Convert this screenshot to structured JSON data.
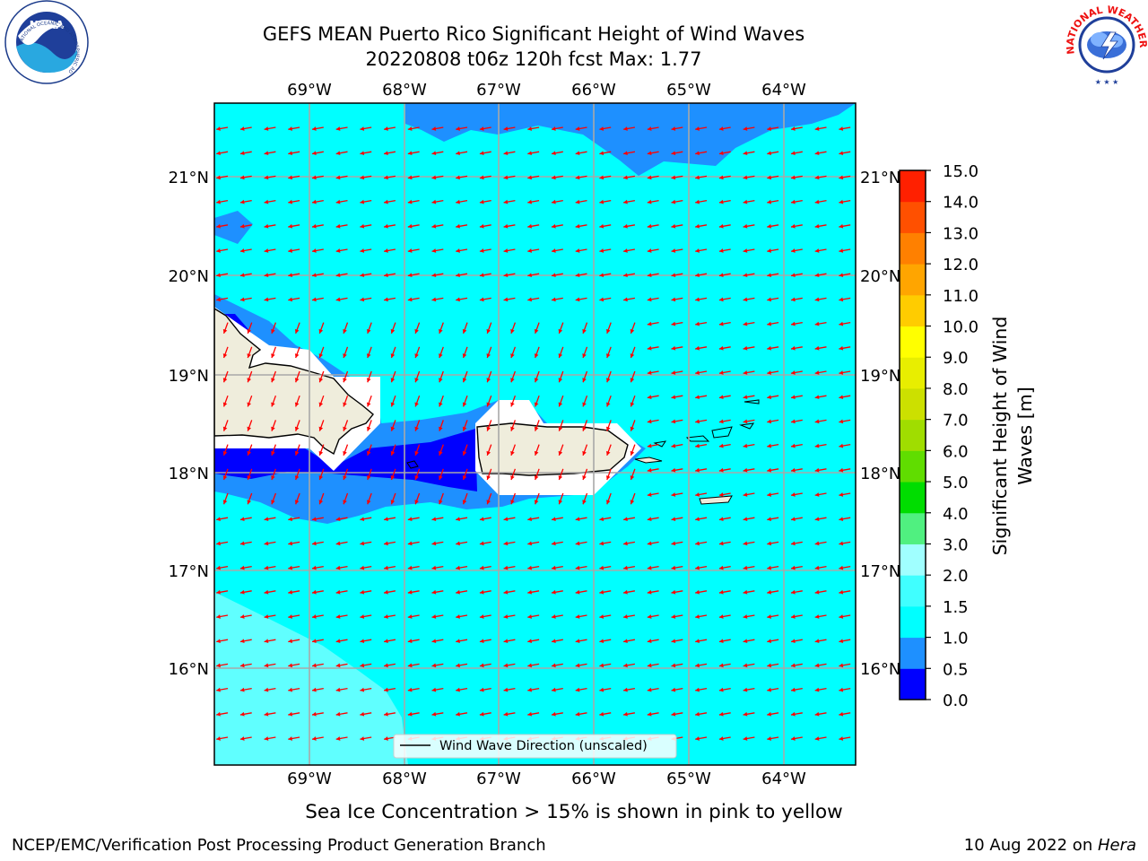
{
  "title_line1": "GEFS MEAN Puerto Rico Significant Height of Wind Waves",
  "title_line2": "20220808 t06z 120h fcst   Max: 1.77",
  "lon_ticks": [
    "69°W",
    "68°W",
    "67°W",
    "66°W",
    "65°W",
    "64°W"
  ],
  "lat_ticks": [
    "21°N",
    "20°N",
    "19°N",
    "18°N",
    "17°N",
    "16°N"
  ],
  "legend_label": "Wind Wave Direction (unscaled)",
  "colorbar": {
    "label_line1": "Significant Height of Wind",
    "label_line2": "Waves [m]",
    "ticks": [
      "0.0",
      "0.5",
      "1.0",
      "1.5",
      "2.0",
      "3.0",
      "4.0",
      "5.0",
      "6.0",
      "7.0",
      "8.0",
      "9.0",
      "10.0",
      "11.0",
      "12.0",
      "13.0",
      "14.0",
      "15.0"
    ],
    "colors": [
      "#0000ff",
      "#1e90ff",
      "#00ffff",
      "#40ffff",
      "#a0ffff",
      "#50f080",
      "#00dd00",
      "#60dd00",
      "#a0dd00",
      "#cce000",
      "#e8ee00",
      "#ffff00",
      "#ffcc00",
      "#ffa500",
      "#ff8000",
      "#ff5000",
      "#ff2000"
    ]
  },
  "sea_ice_note": "Sea Ice Concentration > 15% is shown in pink to yellow",
  "footer_left": "NCEP/EMC/Verification Post Processing Product Generation Branch",
  "footer_right_prefix": "10 Aug 2022 on ",
  "footer_right_host": "Hera",
  "logos": {
    "noaa_text": "NOAA",
    "noaa_ring_text": "NATIONAL OCEANIC AND ATMOSPHERIC ADMINISTRATION · U.S. DEPARTMENT OF COMMERCE",
    "nws_ring_text": "NATIONAL WEATHER SERVICE"
  },
  "colors": {
    "sea": "#00ffff",
    "wave_light": "#60ffff",
    "wave_mid": "#1e90ff",
    "wave_low": "#0000ff",
    "land": "#efeddc",
    "arrow": "#ff0000"
  }
}
